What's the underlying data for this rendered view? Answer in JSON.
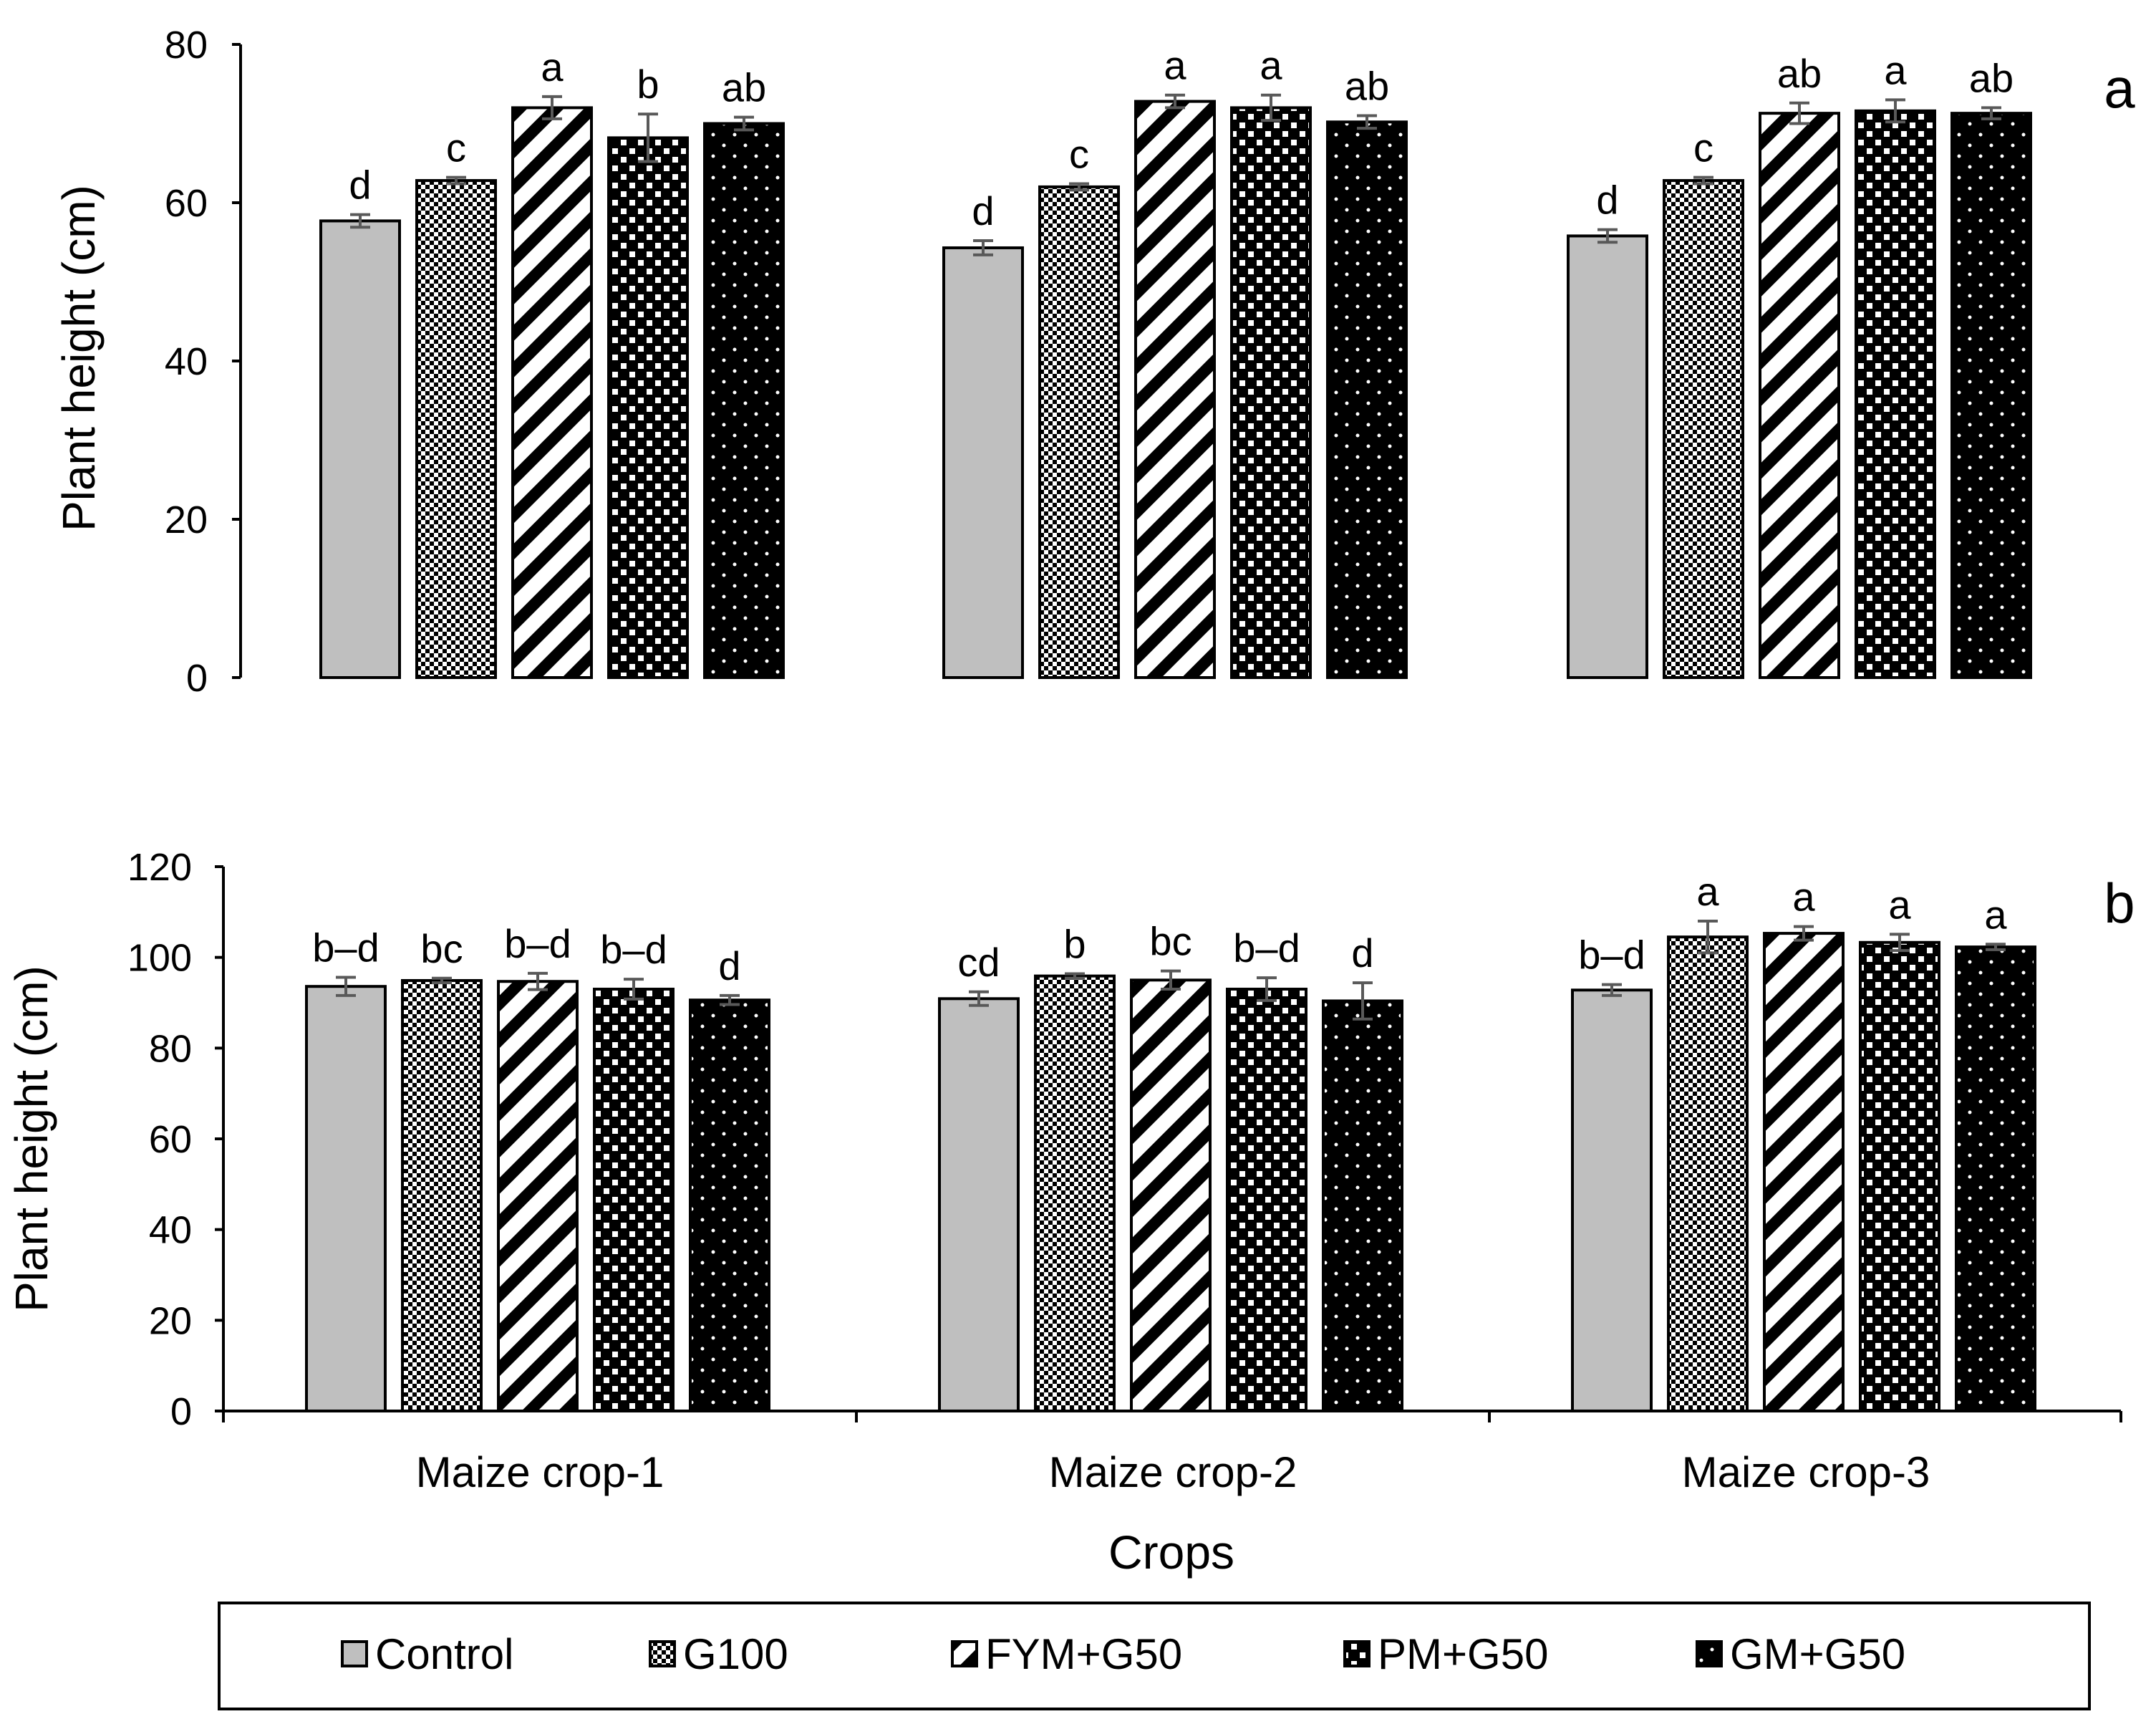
{
  "chart_data": [
    {
      "type": "bar",
      "panel_label": "a",
      "ylabel": "Plant height (cm)",
      "xlabel": "",
      "ylim": [
        0,
        80
      ],
      "yticks": [
        "0",
        "20",
        "40",
        "60",
        "80"
      ],
      "categories": [
        "Maize crop-1",
        "Maize crop-2",
        "Maize crop-3"
      ],
      "series": [
        {
          "name": "Control",
          "values": [
            57.7,
            54.3,
            55.8
          ],
          "errors": [
            0.8,
            0.9,
            0.8
          ],
          "letters": [
            "d",
            "d",
            "d"
          ]
        },
        {
          "name": "G100",
          "values": [
            62.8,
            62.0,
            62.8
          ],
          "errors": [
            0.4,
            0.4,
            0.4
          ],
          "letters": [
            "c",
            "c",
            "c"
          ]
        },
        {
          "name": "FYM+G50",
          "values": [
            72.0,
            72.8,
            71.3
          ],
          "errors": [
            1.4,
            0.8,
            1.3
          ],
          "letters": [
            "a",
            "a",
            "ab"
          ]
        },
        {
          "name": "PM+G50",
          "values": [
            68.2,
            72.0,
            71.6
          ],
          "errors": [
            3.0,
            1.6,
            1.4
          ],
          "letters": [
            "b",
            "a",
            "a"
          ]
        },
        {
          "name": "GM+G50",
          "values": [
            70.0,
            70.2,
            71.3
          ],
          "errors": [
            0.8,
            0.8,
            0.7
          ],
          "letters": [
            "ab",
            "ab",
            "ab"
          ]
        }
      ]
    },
    {
      "type": "bar",
      "panel_label": "b",
      "ylabel": "Plant height (cm)",
      "xlabel": "Crops",
      "ylim": [
        0,
        120
      ],
      "yticks": [
        "0",
        "20",
        "40",
        "60",
        "80",
        "100",
        "120"
      ],
      "categories": [
        "Maize crop-1",
        "Maize crop-2",
        "Maize crop-3"
      ],
      "series": [
        {
          "name": "Control",
          "values": [
            93.6,
            90.9,
            92.8
          ],
          "errors": [
            2.0,
            1.5,
            1.2
          ],
          "letters": [
            "b–d",
            "cd",
            "b–d"
          ]
        },
        {
          "name": "G100",
          "values": [
            94.9,
            95.9,
            104.5
          ],
          "errors": [
            0.5,
            0.5,
            3.5
          ],
          "letters": [
            "bc",
            "b",
            "a"
          ]
        },
        {
          "name": "FYM+G50",
          "values": [
            94.7,
            95.0,
            105.3
          ],
          "errors": [
            1.8,
            2.0,
            1.5
          ],
          "letters": [
            "b–d",
            "bc",
            "a"
          ]
        },
        {
          "name": "PM+G50",
          "values": [
            93.0,
            93.0,
            103.3
          ],
          "errors": [
            2.2,
            2.5,
            1.8
          ],
          "letters": [
            "b–d",
            "b–d",
            "a"
          ]
        },
        {
          "name": "GM+G50",
          "values": [
            90.6,
            90.4,
            102.3
          ],
          "errors": [
            1.0,
            4.0,
            0.6
          ],
          "letters": [
            "d",
            "d",
            "a"
          ]
        }
      ]
    }
  ],
  "legend": {
    "entries": [
      "Control",
      "G100",
      "FYM+G50",
      "PM+G50",
      "GM+G50"
    ],
    "placement": "bottom"
  },
  "colors": {
    "control_fill": "#bfbfbf",
    "gm_fill": "#000000",
    "outline": "#000000",
    "error_bar": "#595959"
  }
}
